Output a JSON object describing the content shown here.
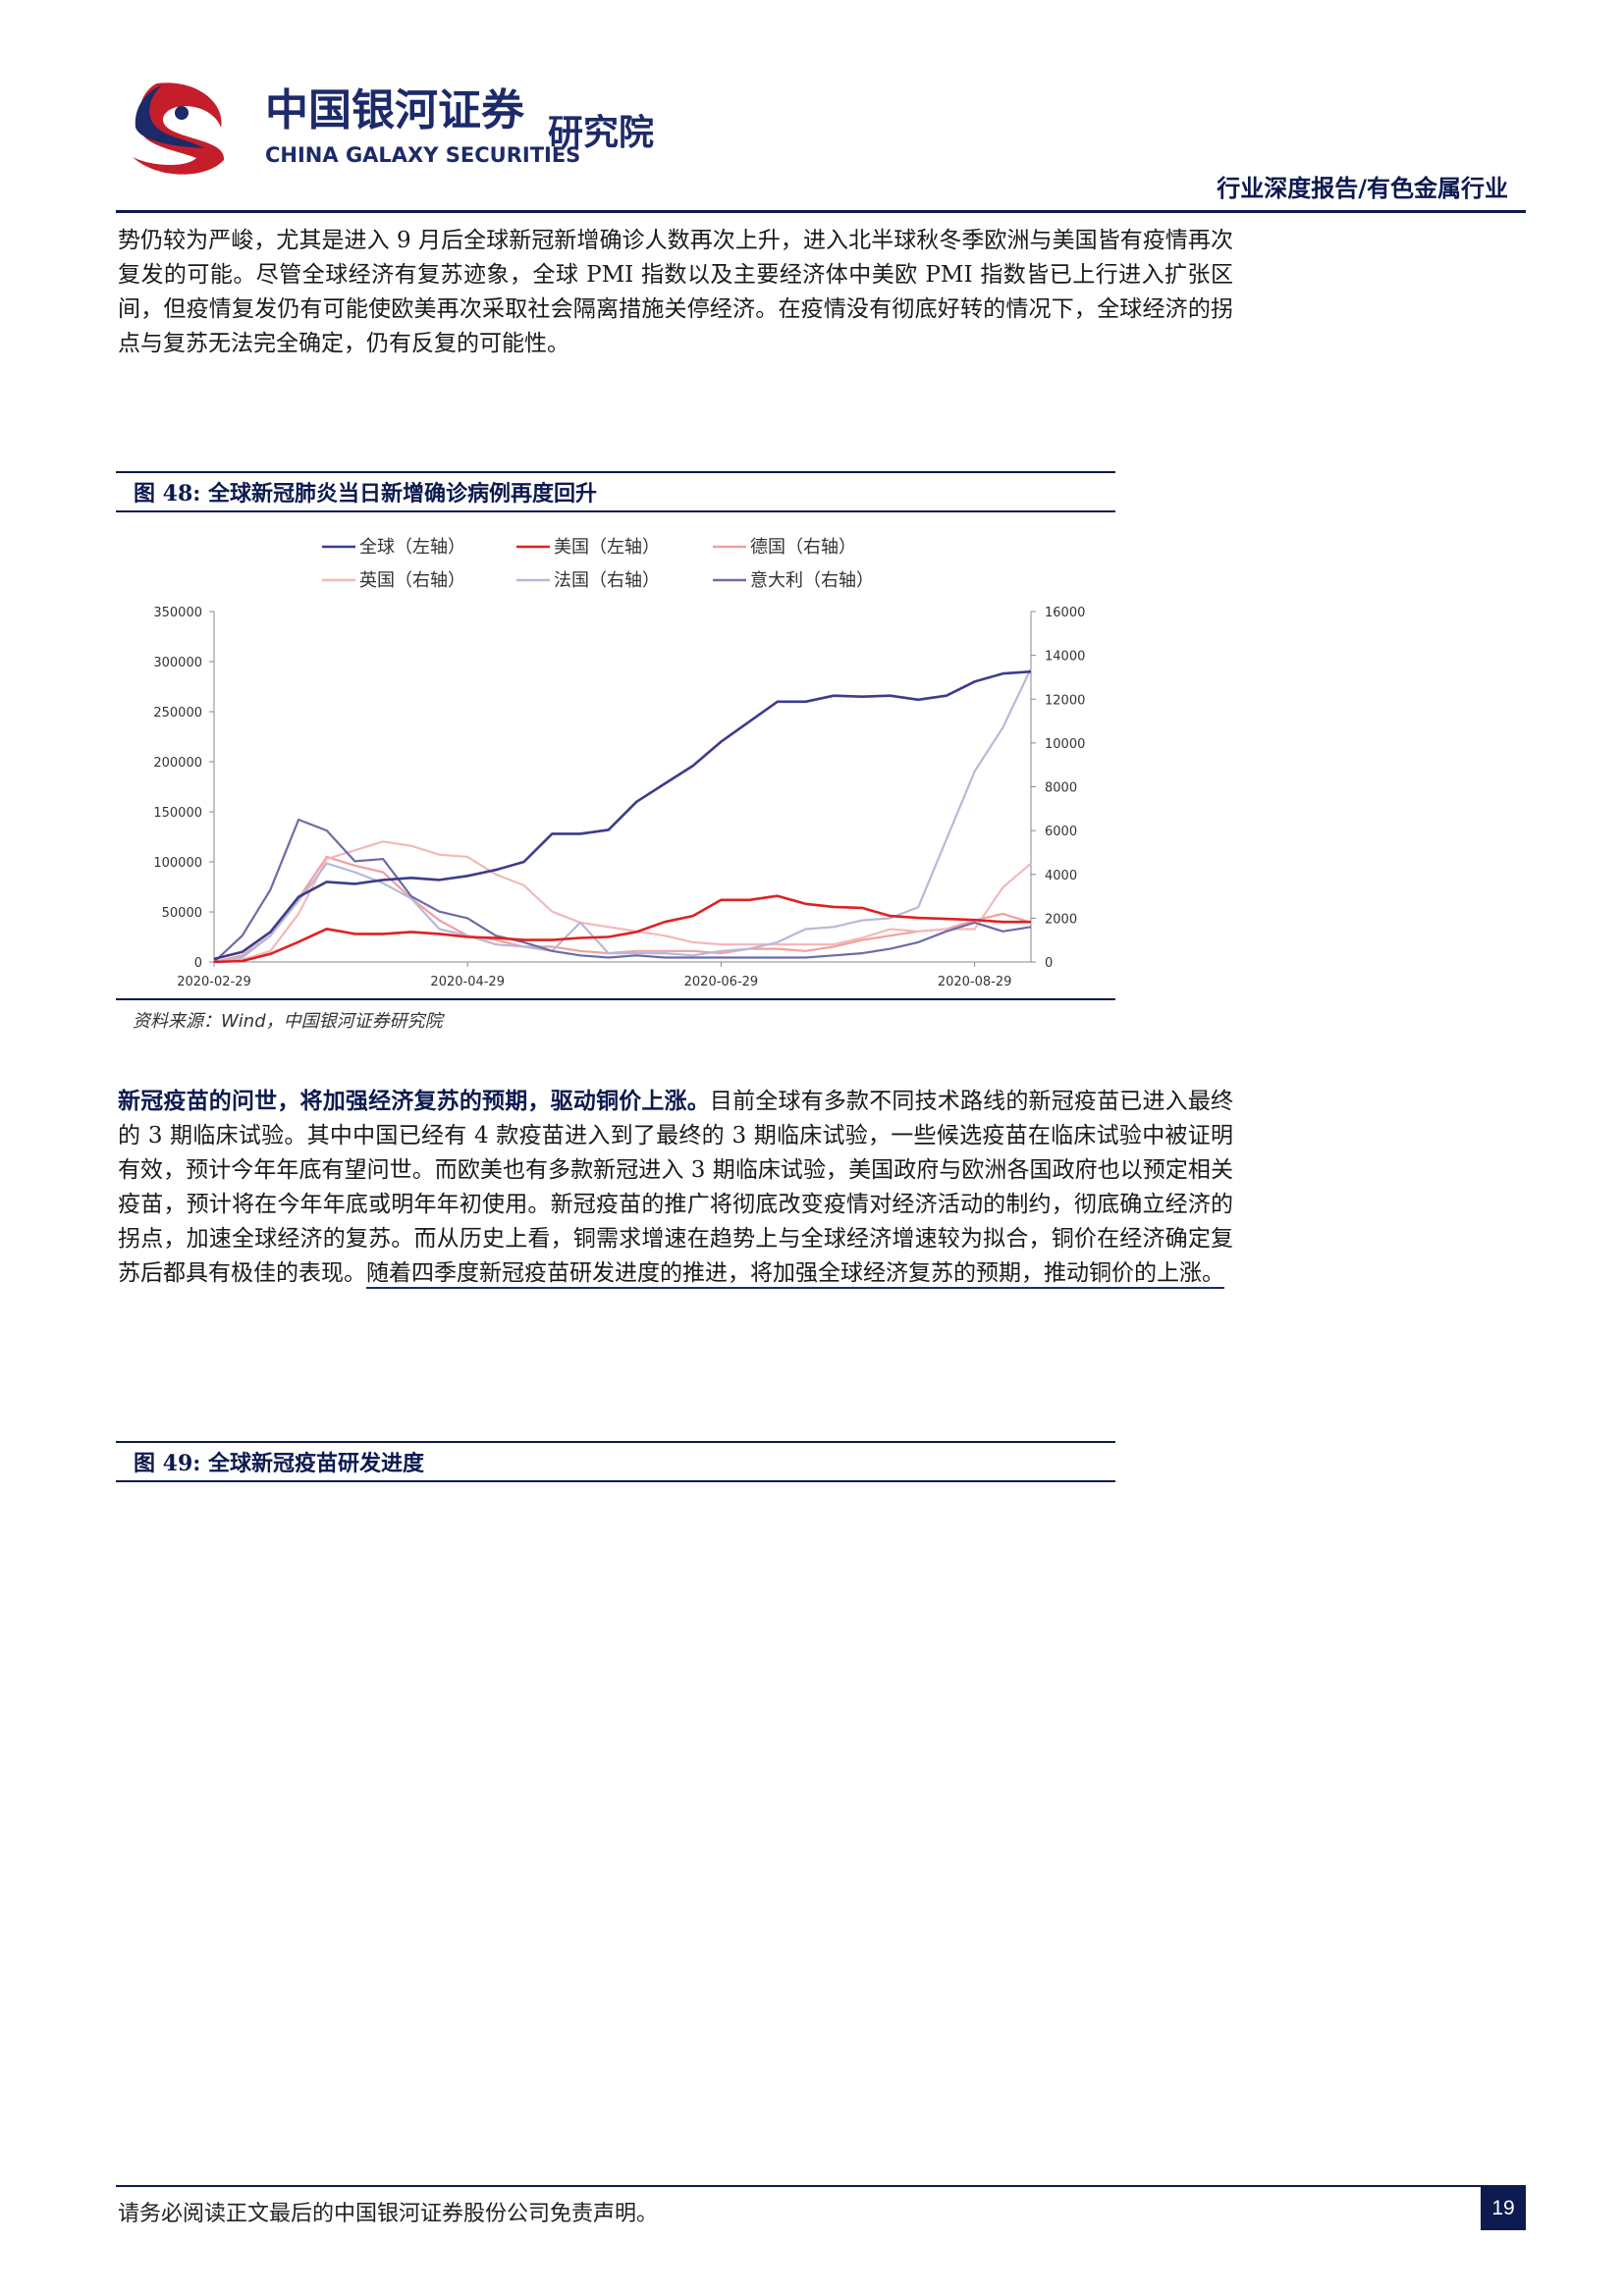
{
  "header": {
    "logo_cn": "中国银河证券",
    "logo_en": "CHINA GALAXY SECURITIES",
    "logo_suffix": "研究院",
    "section": "行业深度报告/有色金属行业"
  },
  "para1": "势仍较为严峻，尤其是进入 9 月后全球新冠新增确诊人数再次上升，进入北半球秋冬季欧洲与美国皆有疫情再次复发的可能。尽管全球经济有复苏迹象，全球 PMI 指数以及主要经济体中美欧 PMI 指数皆已上行进入扩张区间，但疫情复发仍有可能使欧美再次采取社会隔离措施关停经济。在疫情没有彻底好转的情况下，全球经济的拐点与复苏无法完全确定，仍有反复的可能性。",
  "figure48": {
    "caption": "图 48:  全球新冠肺炎当日新增确诊病例再度回升",
    "source": "资料来源：Wind，中国银河证券研究院"
  },
  "para2": {
    "lead": "新冠疫苗的问世，将加强经济复苏的预期，驱动铜价上涨。",
    "body": "目前全球有多款不同技术路线的新冠疫苗已进入最终的 3 期临床试验。其中中国已经有 4 款疫苗进入到了最终的 3 期临床试验，一些候选疫苗在临床试验中被证明有效，预计今年年底有望问世。而欧美也有多款新冠进入 3 期临床试验，美国政府与欧洲各国政府也以预定相关疫苗，预计将在今年年底或明年年初使用。新冠疫苗的推广将彻底改变疫情对经济活动的制约，彻底确立经济的拐点，加速全球经济的复苏。而从历史上看，铜需求增速在趋势上与全球经济增速较为拟合，铜价在经济确定复苏后都具有极佳的表现。",
    "underlined": "随着四季度新冠疫苗研发进度的推进，将加强全球经济复苏的预期，推动铜价的上涨。"
  },
  "figure49": {
    "caption": "图 49:  全球新冠疫苗研发进度"
  },
  "footer": {
    "disclaimer": "请务必阅读正文最后的中国银河证券股份公司免责声明。",
    "page_number": "19"
  },
  "chart_data": {
    "type": "line",
    "title": "全球新冠肺炎当日新增确诊病例再度回升",
    "x_ticks": [
      "2020-02-29",
      "2020-04-29",
      "2020-06-29",
      "2020-08-29"
    ],
    "ylim_left": [
      0,
      350000
    ],
    "ylim_right": [
      0,
      16000
    ],
    "y_ticks_left": [
      "0",
      "50000",
      "100000",
      "150000",
      "200000",
      "250000",
      "300000",
      "350000"
    ],
    "y_ticks_right": [
      "0",
      "2000",
      "4000",
      "6000",
      "8000",
      "10000",
      "12000",
      "14000",
      "16000"
    ],
    "n_points": 30,
    "series": [
      {
        "name": "全球（左轴）",
        "axis": "left",
        "color": "#3c3c8c",
        "values": [
          3000,
          10000,
          30000,
          65000,
          80000,
          78000,
          82000,
          84000,
          82000,
          86000,
          92000,
          100000,
          128000,
          128000,
          132000,
          160000,
          178000,
          196000,
          220000,
          240000,
          260000,
          260000,
          266000,
          265000,
          266000,
          262000,
          266000,
          280000,
          288000,
          290000
        ]
      },
      {
        "name": "美国（左轴）",
        "axis": "left",
        "color": "#e02020",
        "values": [
          0,
          1000,
          8000,
          20000,
          33000,
          28000,
          28000,
          30000,
          28000,
          25000,
          24000,
          22000,
          22000,
          24000,
          25000,
          30000,
          40000,
          46000,
          62000,
          62000,
          66000,
          58000,
          55000,
          54000,
          46000,
          44000,
          43000,
          42000,
          40000,
          40000
        ]
      },
      {
        "name": "德国（右轴）",
        "axis": "right",
        "color": "#f0a0a0",
        "values": [
          0,
          300,
          1200,
          2900,
          4800,
          4400,
          4100,
          2900,
          1900,
          1200,
          1000,
          700,
          700,
          500,
          400,
          500,
          500,
          500,
          400,
          600,
          600,
          500,
          700,
          1000,
          1200,
          1400,
          1500,
          1900,
          2200,
          1800
        ]
      },
      {
        "name": "英国（右轴）",
        "axis": "right",
        "color": "#f4b8b8",
        "values": [
          0,
          100,
          500,
          2200,
          4700,
          5100,
          5500,
          5300,
          4900,
          4800,
          4000,
          3500,
          2300,
          1800,
          1600,
          1400,
          1200,
          900,
          800,
          800,
          800,
          800,
          800,
          1100,
          1500,
          1400,
          1500,
          1500,
          3400,
          4500
        ]
      },
      {
        "name": "法国（右轴）",
        "axis": "right",
        "color": "#b8b8d8",
        "values": [
          0,
          200,
          1200,
          2800,
          4500,
          4100,
          3600,
          2900,
          1500,
          1200,
          800,
          700,
          500,
          1800,
          400,
          400,
          400,
          300,
          500,
          600,
          900,
          1500,
          1600,
          1900,
          2000,
          2500,
          5600,
          8700,
          10700,
          13400
        ]
      },
      {
        "name": "意大利（右轴）",
        "axis": "right",
        "color": "#6b6baa",
        "values": [
          0,
          1200,
          3300,
          6500,
          6000,
          4600,
          4700,
          3000,
          2300,
          2000,
          1200,
          900,
          500,
          300,
          200,
          300,
          200,
          200,
          200,
          200,
          200,
          200,
          300,
          400,
          600,
          900,
          1400,
          1800,
          1400,
          1600
        ]
      }
    ]
  }
}
